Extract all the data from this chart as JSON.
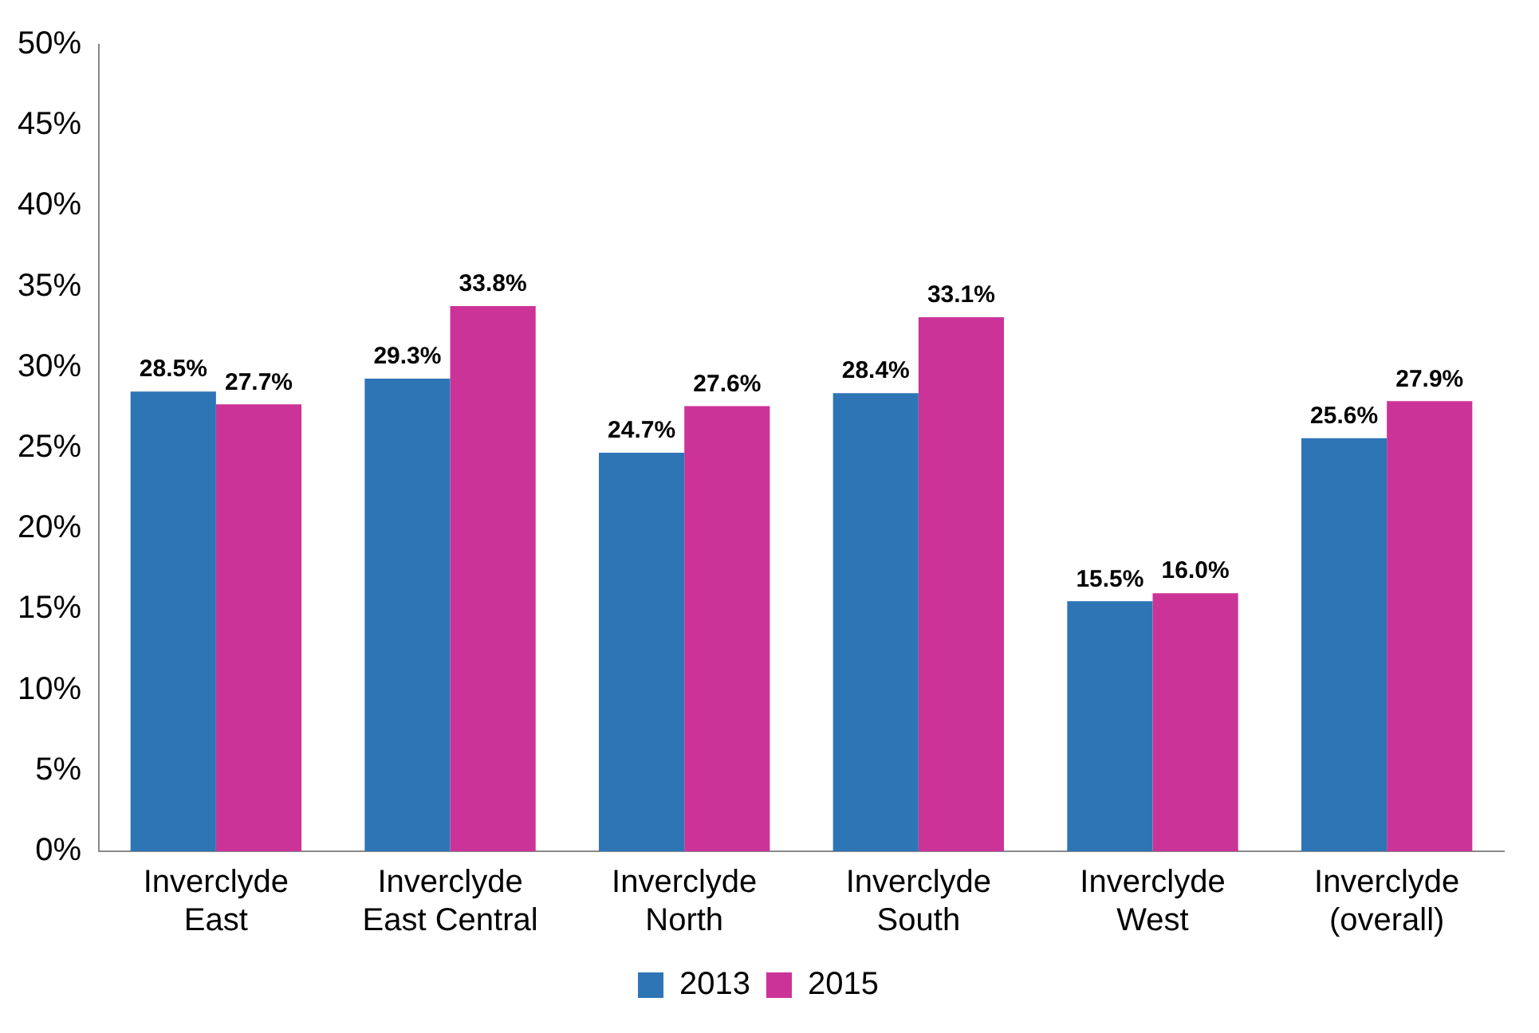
{
  "chart_data": {
    "type": "bar",
    "categories": [
      "Inverclyde East",
      "Inverclyde East Central",
      "Inverclyde North",
      "Inverclyde South",
      "Inverclyde West",
      "Inverclyde (overall)"
    ],
    "series": [
      {
        "name": "2013",
        "color": "#2e75b6",
        "values": [
          28.5,
          29.3,
          24.7,
          28.4,
          15.5,
          25.6
        ],
        "value_labels": [
          "28.5%",
          "29.3%",
          "24.7%",
          "28.4%",
          "15.5%",
          "25.6%"
        ]
      },
      {
        "name": "2015",
        "color": "#cc3399",
        "values": [
          27.7,
          33.8,
          27.6,
          33.1,
          16.0,
          27.9
        ],
        "value_labels": [
          "27.7%",
          "33.8%",
          "27.6%",
          "33.1%",
          "16.0%",
          "27.9%"
        ]
      }
    ],
    "ylim": [
      0,
      50
    ],
    "yticks": [
      {
        "value": 0,
        "label": "0%"
      },
      {
        "value": 5,
        "label": "5%"
      },
      {
        "value": 10,
        "label": "10%"
      },
      {
        "value": 15,
        "label": "15%"
      },
      {
        "value": 20,
        "label": "20%"
      },
      {
        "value": 25,
        "label": "25%"
      },
      {
        "value": 30,
        "label": "30%"
      },
      {
        "value": 35,
        "label": "35%"
      },
      {
        "value": 40,
        "label": "40%"
      },
      {
        "value": 45,
        "label": "45%"
      },
      {
        "value": 50,
        "label": "50%"
      }
    ],
    "grid": false,
    "legend": "bottom"
  }
}
